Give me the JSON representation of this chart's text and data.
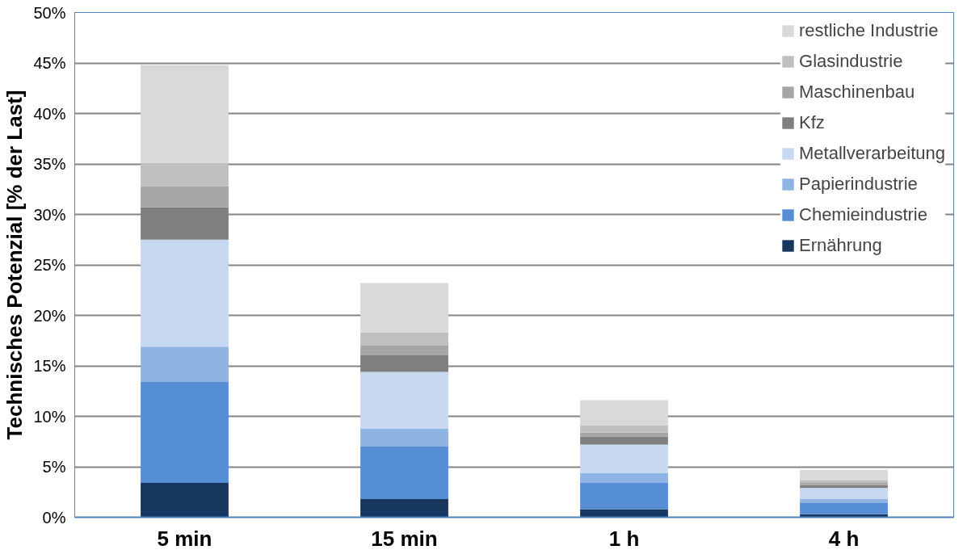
{
  "chart_data": {
    "type": "bar",
    "stacked": true,
    "ylabel": "Technisches Potenzial [% der Last]",
    "categories": [
      "5 min",
      "15 min",
      "1 h",
      "4 h"
    ],
    "series": [
      {
        "name": "Ernährung",
        "color": "#17375e",
        "values": [
          3.4,
          1.8,
          0.8,
          0.3
        ]
      },
      {
        "name": "Chemieindustrie",
        "color": "#558ed5",
        "values": [
          10.0,
          5.2,
          2.6,
          1.1
        ]
      },
      {
        "name": "Papierindustrie",
        "color": "#8eb4e3",
        "values": [
          3.5,
          1.8,
          1.0,
          0.4
        ]
      },
      {
        "name": "Metallverarbeitung",
        "color": "#c6d9f1",
        "values": [
          10.6,
          5.6,
          2.8,
          1.1
        ]
      },
      {
        "name": "Kfz",
        "color": "#7f7f7f",
        "values": [
          3.2,
          1.7,
          0.8,
          0.3
        ]
      },
      {
        "name": "Maschinenbau",
        "color": "#a6a6a6",
        "values": [
          2.1,
          0.9,
          0.4,
          0.2
        ]
      },
      {
        "name": "Glasindustrie",
        "color": "#bfbfbf",
        "values": [
          2.3,
          1.3,
          0.7,
          0.3
        ]
      },
      {
        "name": "restliche Industrie",
        "color": "#d9d9d9",
        "values": [
          9.7,
          4.9,
          2.5,
          1.0
        ]
      }
    ],
    "ylim": [
      0,
      50
    ],
    "yticks": [
      {
        "value": 0,
        "label": "0%"
      },
      {
        "value": 5,
        "label": "5%"
      },
      {
        "value": 10,
        "label": "10%"
      },
      {
        "value": 15,
        "label": "15%"
      },
      {
        "value": 20,
        "label": "20%"
      },
      {
        "value": 25,
        "label": "25%"
      },
      {
        "value": 30,
        "label": "30%"
      },
      {
        "value": 35,
        "label": "35%"
      },
      {
        "value": 40,
        "label": "40%"
      },
      {
        "value": 45,
        "label": "45%"
      },
      {
        "value": 50,
        "label": "50%"
      }
    ],
    "grid": "y",
    "legend": "top right"
  }
}
